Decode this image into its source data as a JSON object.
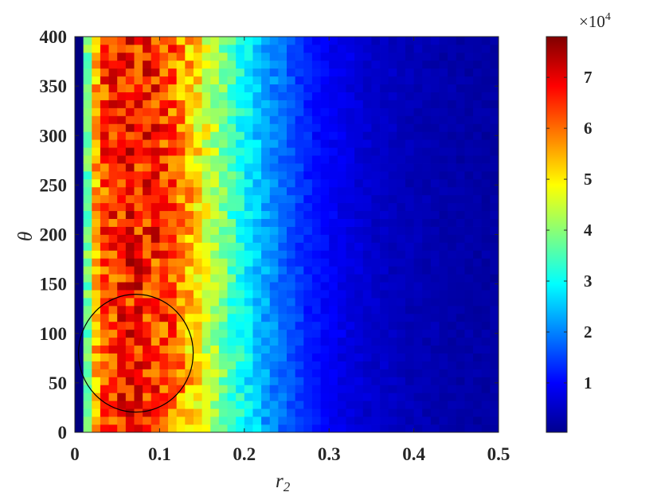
{
  "chart_data": {
    "type": "heatmap",
    "xlabel": "r",
    "xlabel_subscript": "2",
    "ylabel": "θ",
    "xlim": [
      0,
      0.5
    ],
    "ylim": [
      0,
      400
    ],
    "xticks": [
      "0",
      "0.1",
      "0.2",
      "0.3",
      "0.4",
      "0.5"
    ],
    "yticks": [
      "0",
      "50",
      "100",
      "150",
      "200",
      "250",
      "300",
      "350",
      "400"
    ],
    "grid": {
      "x_bins": 50,
      "y_bins": 50
    },
    "x_profile": {
      "r2": [
        0.005,
        0.015,
        0.025,
        0.035,
        0.05,
        0.07,
        0.09,
        0.11,
        0.13,
        0.15,
        0.17,
        0.19,
        0.21,
        0.23,
        0.25,
        0.27,
        0.3,
        0.35,
        0.4,
        0.45,
        0.5
      ],
      "count": [
        300,
        38000,
        55000,
        63000,
        66000,
        67000,
        66000,
        63000,
        56000,
        48000,
        40000,
        33000,
        27000,
        21000,
        17000,
        13000,
        9500,
        6000,
        4500,
        3500,
        3000
      ]
    },
    "colorbar": {
      "ticks": [
        "1",
        "2",
        "3",
        "4",
        "5",
        "6",
        "7"
      ],
      "multiplier": "×10",
      "multiplier_exponent": "4",
      "range": [
        300,
        78000
      ],
      "colormap": "jet"
    },
    "annotation": {
      "shape": "circle",
      "center": [
        0.072,
        80
      ]
    }
  }
}
